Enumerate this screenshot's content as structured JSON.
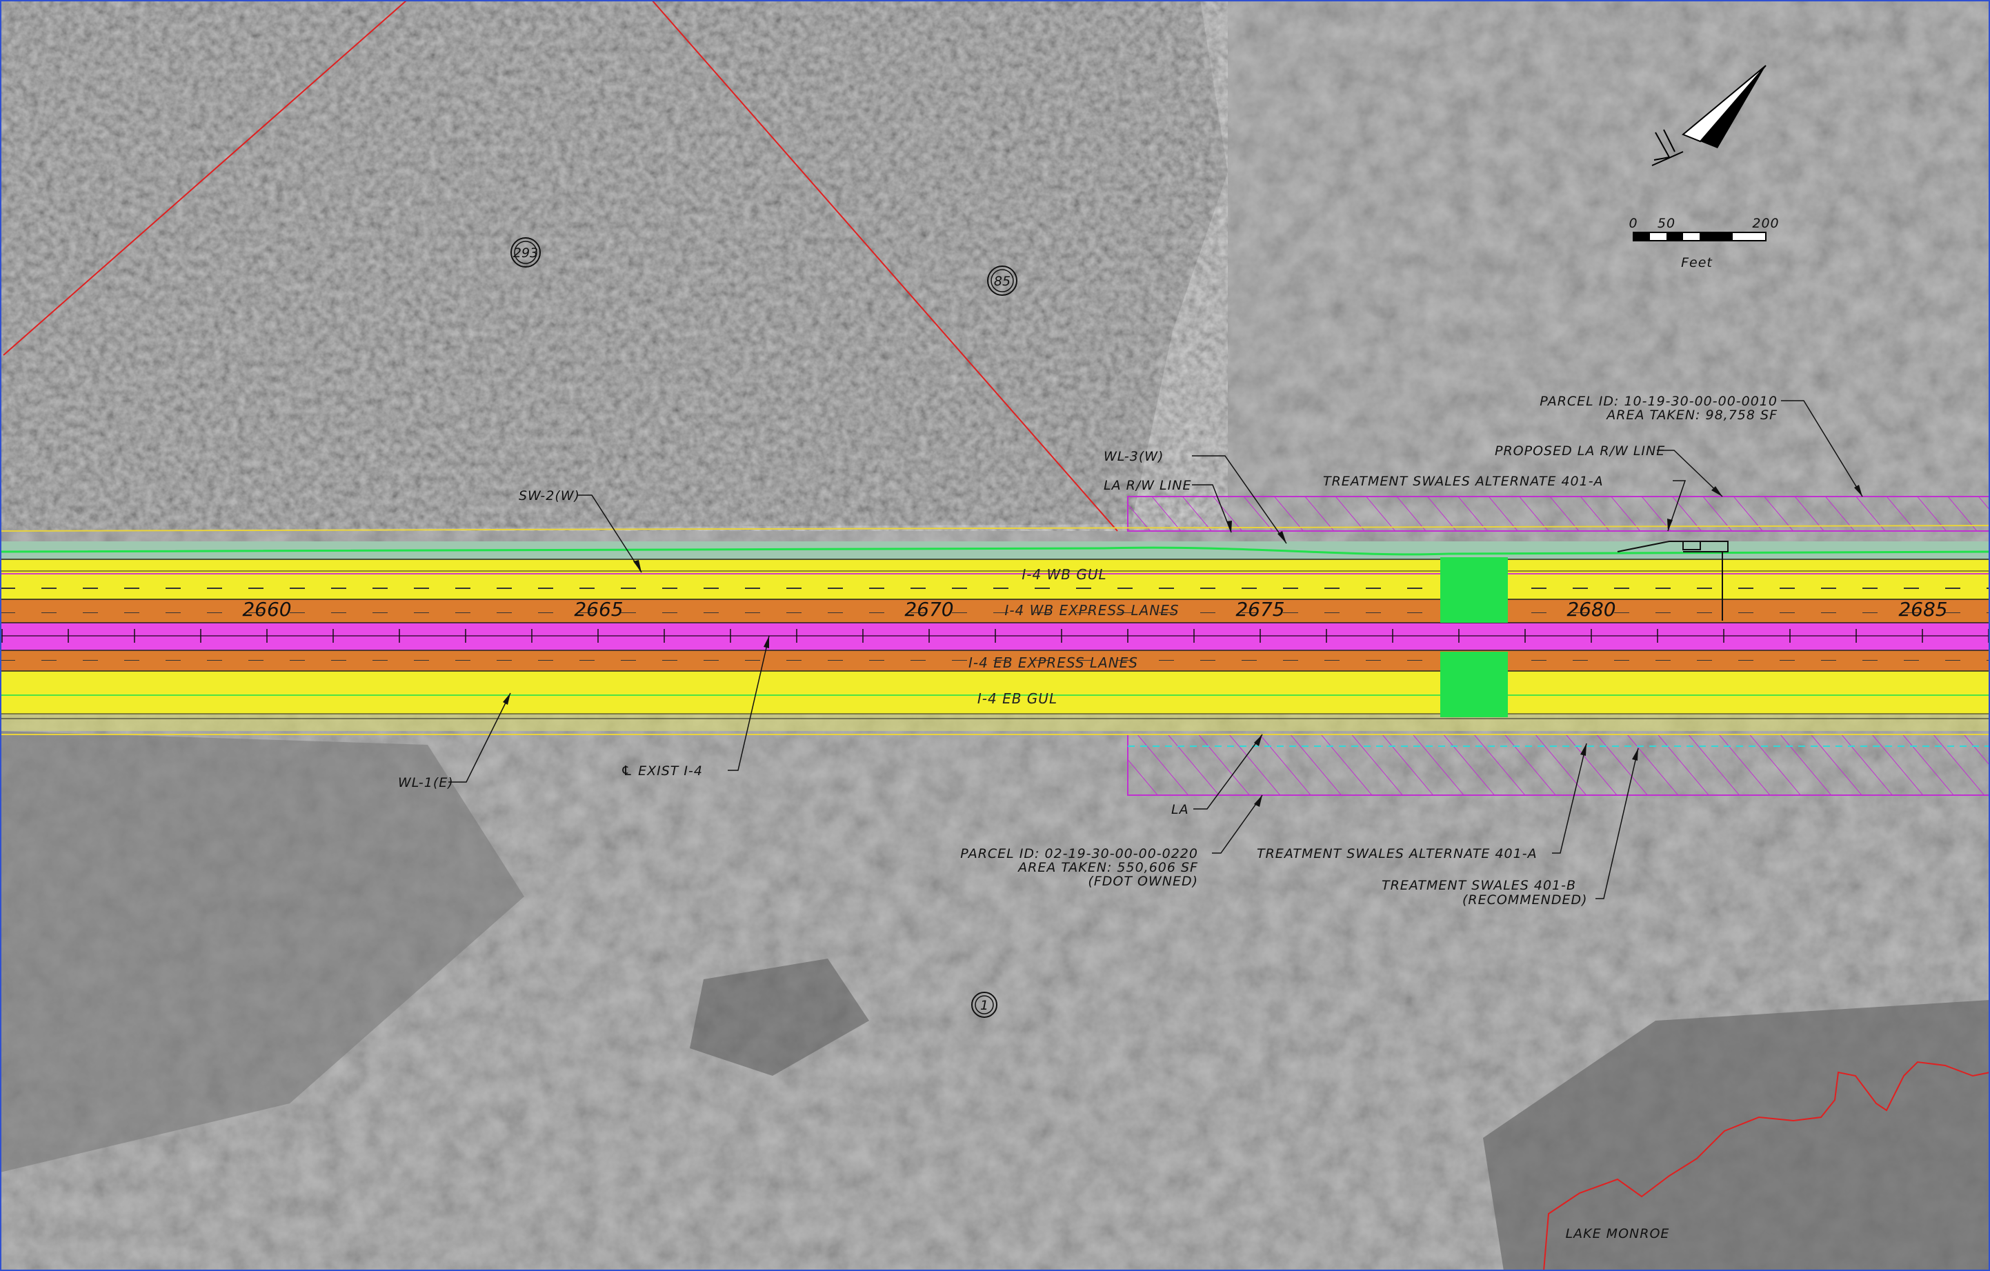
{
  "colors": {
    "gul": "#f2ee2a",
    "express": "#dc7c2e",
    "median": "#e84be8",
    "treatment": "#22e04c",
    "row_line": "#ead43a",
    "parcel_line": "#e02020",
    "hatch": "#c030d0",
    "lake": "#e02020"
  },
  "parcels": {
    "p293": "293",
    "p85": "85",
    "p1": "1"
  },
  "stations": [
    "2660",
    "2665",
    "2670",
    "2675",
    "2680",
    "2685"
  ],
  "lanes": {
    "wb_gul": "I-4 WB GUL",
    "wb_express": "I-4 WB EXPRESS LANES",
    "eb_express": "I-4 EB EXPRESS LANES",
    "eb_gul": "I-4 EB GUL"
  },
  "callouts": {
    "sw2": "SW-2(W)",
    "wl3": "WL-3(W)",
    "la_row": "LA R/W LINE",
    "treat_a_top": "TREATMENT SWALES ALTERNATE 401-A",
    "proposed_row": "PROPOSED LA R/W LINE",
    "parcel_top_id": "PARCEL ID: 10-19-30-00-00-0010",
    "parcel_top_area": "AREA TAKEN: 98,758 SF",
    "wl1": "WL-1(E)",
    "exist_cl": "℄ EXIST I-4",
    "la": "LA",
    "parcel_bot_id": "PARCEL ID: 02-19-30-00-00-0220",
    "parcel_bot_area": "AREA TAKEN: 550,606 SF",
    "parcel_bot_owner": "(FDOT OWNED)",
    "treat_a_bot": "TREATMENT SWALES ALTERNATE 401-A",
    "treat_b": "TREATMENT SWALES 401-B",
    "treat_b_rec": "(RECOMMENDED)"
  },
  "scale": {
    "t0": "0",
    "t50": "50",
    "t200": "200",
    "units": "Feet"
  },
  "lake": "LAKE MONROE",
  "north_icon": "north-arrow-icon"
}
